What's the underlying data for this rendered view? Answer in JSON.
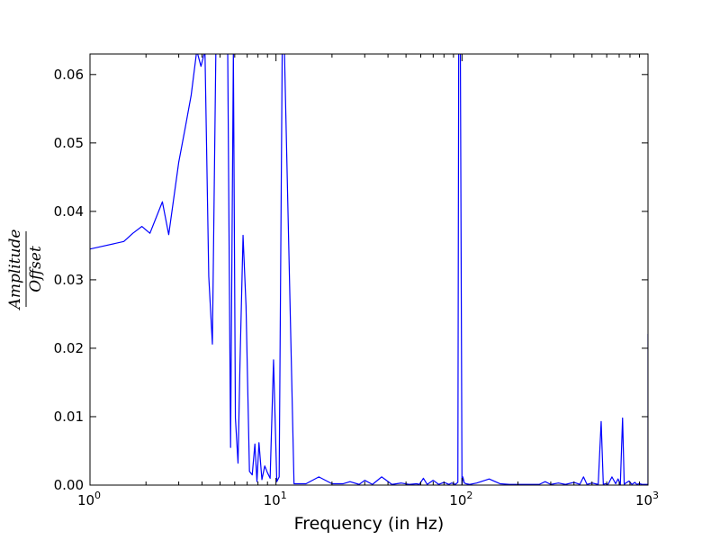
{
  "chart_data": {
    "type": "line",
    "xlabel": "Frequency (in Hz)",
    "ylabel_numerator": "Amplitude",
    "ylabel_denominator": "Offset",
    "xscale": "log",
    "xlim": [
      1,
      1000
    ],
    "ylim": [
      0,
      0.063
    ],
    "grid": false,
    "line_color": "#0000ff",
    "x_ticks": [
      {
        "value": 1,
        "base": "10",
        "exp": "0"
      },
      {
        "value": 10,
        "base": "10",
        "exp": "1"
      },
      {
        "value": 100,
        "base": "10",
        "exp": "2"
      },
      {
        "value": 1000,
        "base": "10",
        "exp": "3"
      }
    ],
    "y_ticks": [
      {
        "value": 0,
        "label": "0.00"
      },
      {
        "value": 0.01,
        "label": "0.01"
      },
      {
        "value": 0.02,
        "label": "0.02"
      },
      {
        "value": 0.03,
        "label": "0.03"
      },
      {
        "value": 0.04,
        "label": "0.04"
      },
      {
        "value": 0.05,
        "label": "0.05"
      },
      {
        "value": 0.06,
        "label": "0.06"
      }
    ],
    "series": [
      {
        "x": [
          1.0,
          1.52,
          1.7,
          1.9,
          2.1,
          2.45,
          2.65,
          3.0,
          3.25,
          3.5,
          3.75,
          3.95,
          4.15,
          4.35,
          4.55,
          4.75,
          5.5,
          5.7,
          5.9,
          6.05,
          6.25,
          6.4,
          6.65,
          6.9,
          7.2,
          7.45,
          7.7,
          7.9,
          8.1,
          8.4,
          8.7,
          9.0,
          9.3,
          9.7,
          10.1,
          10.4,
          10.8,
          11.1,
          12.5,
          14.5,
          17,
          20,
          23,
          25,
          28,
          30,
          33,
          37,
          42,
          47,
          52,
          57,
          59,
          62,
          65,
          70,
          75,
          80,
          85,
          88,
          92,
          95,
          96,
          98,
          100,
          101,
          103,
          105,
          110,
          120,
          140,
          160,
          180,
          200,
          230,
          260,
          280,
          300,
          330,
          360,
          400,
          430,
          450,
          470,
          500,
          540,
          560,
          575,
          590,
          610,
          640,
          670,
          690,
          710,
          730,
          745,
          760,
          790,
          820,
          850,
          870,
          900,
          930,
          960,
          990,
          1000,
          1000
        ],
        "y": [
          0.0345,
          0.0356,
          0.0368,
          0.0378,
          0.0368,
          0.0414,
          0.0366,
          0.0472,
          0.0522,
          0.057,
          0.0635,
          0.0612,
          0.0635,
          0.0305,
          0.0206,
          0.0635,
          0.0635,
          0.0055,
          0.0635,
          0.0098,
          0.0032,
          0.0175,
          0.0365,
          0.0262,
          0.002,
          0.0015,
          0.006,
          0.0005,
          0.0062,
          0.0008,
          0.0028,
          0.0018,
          0.001,
          0.0183,
          0.0005,
          0.0012,
          0.0635,
          0.0635,
          0.0002,
          0.0002,
          0.0012,
          0.0002,
          0.0002,
          0.0005,
          0.0001,
          0.0007,
          0.0001,
          0.0012,
          0.0001,
          0.0003,
          0.0001,
          0.0002,
          0.0001,
          0.001,
          0.0001,
          0.0007,
          0.0001,
          0.0004,
          0.0001,
          0.0003,
          0.0001,
          0.0004,
          0.0635,
          0.0635,
          0.0,
          0.0012,
          0.0003,
          0.0002,
          0.0001,
          0.0003,
          0.0009,
          0.0002,
          0.0001,
          0.0001,
          0.0001,
          0.0001,
          0.0005,
          0.0001,
          0.0003,
          0.0001,
          0.0004,
          0.0001,
          0.0012,
          0.0001,
          0.0003,
          0.0001,
          0.0093,
          0.0001,
          0.0002,
          0.0001,
          0.0012,
          0.0002,
          0.0009,
          0.0001,
          0.0098,
          0.0001,
          0.0003,
          0.0006,
          0.0001,
          0.0004,
          0.0001,
          0.0002,
          0.0001,
          0.0001,
          0.0001,
          0.0001,
          0.0221
        ]
      }
    ]
  }
}
